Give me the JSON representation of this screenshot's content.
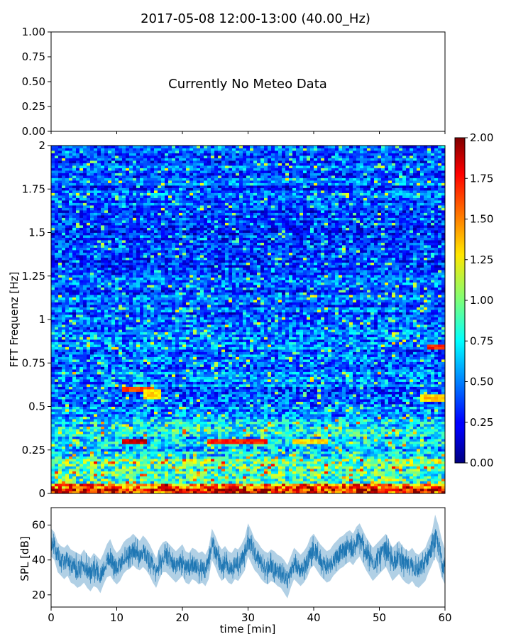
{
  "figure": {
    "title": "2017-05-08 12:00-13:00 (40.00_Hz)"
  },
  "chart_data": [
    {
      "type": "line",
      "name": "meteo",
      "ylim": [
        0,
        1
      ],
      "yticks": [
        {
          "value": 0,
          "label": "0.00"
        },
        {
          "value": 0.25,
          "label": "0.25"
        },
        {
          "value": 0.5,
          "label": "0.50"
        },
        {
          "value": 0.75,
          "label": "0.75"
        },
        {
          "value": 1,
          "label": "1.00"
        }
      ],
      "xlim": [
        0,
        60
      ],
      "xticks": [
        0,
        10,
        20,
        30,
        40,
        50,
        60
      ],
      "annotation": "Currently No Meteo Data",
      "series": []
    },
    {
      "type": "heatmap",
      "name": "spectrogram",
      "ylabel": "FFT Frequenz [Hz]",
      "xlim": [
        0,
        60
      ],
      "ylim": [
        0,
        2
      ],
      "yticks": [
        {
          "value": 0,
          "label": "0"
        },
        {
          "value": 0.25,
          "label": "0.25"
        },
        {
          "value": 0.5,
          "label": "0.5"
        },
        {
          "value": 0.75,
          "label": "0.75"
        },
        {
          "value": 1,
          "label": "1"
        },
        {
          "value": 1.25,
          "label": "1.25"
        },
        {
          "value": 1.5,
          "label": "1.5"
        },
        {
          "value": 1.75,
          "label": "1.75"
        },
        {
          "value": 2,
          "label": "2"
        }
      ],
      "colormap": "jet",
      "colorbar": {
        "range": [
          0,
          2
        ],
        "ticks": [
          "0.00",
          "0.25",
          "0.50",
          "0.75",
          "1.00",
          "1.25",
          "1.50",
          "1.75",
          "2.00"
        ]
      },
      "hotspots": [
        {
          "t0": 10.8,
          "t1": 14.8,
          "f0": 0.28,
          "f1": 0.31,
          "level": 1.85
        },
        {
          "t0": 24.0,
          "t1": 33.0,
          "f0": 0.28,
          "f1": 0.32,
          "level": 1.7
        },
        {
          "t0": 11.0,
          "t1": 15.5,
          "f0": 0.58,
          "f1": 0.61,
          "level": 1.6
        },
        {
          "t0": 14.0,
          "t1": 17.0,
          "f0": 0.55,
          "f1": 0.6,
          "level": 1.3
        },
        {
          "t0": 56.0,
          "t1": 60.0,
          "f0": 0.53,
          "f1": 0.57,
          "level": 1.35
        },
        {
          "t0": 57.5,
          "t1": 60.0,
          "f0": 0.83,
          "f1": 0.85,
          "level": 1.7
        },
        {
          "t0": 36.5,
          "t1": 42.0,
          "f0": 0.29,
          "f1": 0.32,
          "level": 1.3
        }
      ]
    },
    {
      "type": "area",
      "name": "spl",
      "ylabel": "SPL [dB]",
      "xlabel": "time [min]",
      "xlim": [
        0,
        60
      ],
      "ylim": [
        13,
        70
      ],
      "xticks": [
        0,
        10,
        20,
        30,
        40,
        50,
        60
      ],
      "yticks": [
        20,
        40,
        60
      ],
      "color": "#1f77b4",
      "series": [
        {
          "x": [
            0,
            0.5,
            1,
            1.5,
            2,
            2.5,
            3,
            3.5,
            4,
            4.5,
            5,
            5.5,
            6,
            6.5,
            7,
            7.5,
            8,
            8.5,
            9,
            9.5,
            10,
            10.5,
            11,
            11.5,
            12,
            12.5,
            13,
            13.5,
            14,
            14.5,
            15,
            15.5,
            16,
            16.5,
            17,
            17.5,
            18,
            18.5,
            19,
            19.5,
            20,
            20.5,
            21,
            21.5,
            22,
            22.5,
            23,
            23.5,
            24,
            24.5,
            25,
            25.5,
            26,
            26.5,
            27,
            27.5,
            28,
            28.5,
            29,
            29.5,
            30,
            30.5,
            31,
            31.5,
            32,
            32.5,
            33,
            33.5,
            34,
            34.5,
            35,
            35.5,
            36,
            36.5,
            37,
            37.5,
            38,
            38.5,
            39,
            39.5,
            40,
            40.5,
            41,
            41.5,
            42,
            42.5,
            43,
            43.5,
            44,
            44.5,
            45,
            45.5,
            46,
            46.5,
            47,
            47.5,
            48,
            48.5,
            49,
            49.5,
            50,
            50.5,
            51,
            51.5,
            52,
            52.5,
            53,
            53.5,
            54,
            54.5,
            55,
            55.5,
            56,
            56.5,
            57,
            57.5,
            58,
            58.5,
            59,
            59.5,
            60
          ],
          "mid": [
            50,
            48,
            42,
            40,
            38,
            40,
            37,
            36,
            35,
            34,
            37,
            34,
            32,
            35,
            33,
            31,
            35,
            40,
            42,
            38,
            35,
            37,
            41,
            43,
            44,
            46,
            44,
            42,
            45,
            43,
            40,
            36,
            32,
            38,
            41,
            42,
            40,
            38,
            36,
            38,
            40,
            36,
            35,
            38,
            37,
            35,
            36,
            34,
            38,
            50,
            45,
            40,
            37,
            39,
            36,
            35,
            38,
            37,
            40,
            44,
            52,
            48,
            43,
            41,
            38,
            36,
            35,
            37,
            36,
            34,
            33,
            31,
            28,
            33,
            38,
            36,
            34,
            36,
            39,
            44,
            46,
            43,
            40,
            38,
            36,
            37,
            40,
            42,
            44,
            45,
            47,
            48,
            46,
            50,
            52,
            48,
            44,
            41,
            38,
            40,
            42,
            44,
            46,
            42,
            38,
            40,
            42,
            39,
            37,
            36,
            38,
            35,
            34,
            36,
            38,
            43,
            47,
            52,
            48,
            40,
            36
          ],
          "low": [
            42,
            40,
            33,
            31,
            29,
            31,
            27,
            26,
            24,
            25,
            27,
            24,
            22,
            25,
            24,
            21,
            26,
            30,
            31,
            28,
            26,
            28,
            32,
            34,
            35,
            37,
            35,
            34,
            36,
            34,
            31,
            27,
            24,
            29,
            33,
            33,
            31,
            29,
            27,
            29,
            31,
            27,
            26,
            29,
            28,
            26,
            27,
            25,
            29,
            40,
            36,
            31,
            28,
            30,
            27,
            26,
            29,
            28,
            31,
            34,
            42,
            38,
            34,
            32,
            29,
            27,
            26,
            28,
            27,
            25,
            24,
            21,
            18,
            24,
            29,
            27,
            25,
            27,
            30,
            35,
            37,
            34,
            31,
            29,
            27,
            28,
            31,
            33,
            35,
            36,
            38,
            39,
            37,
            40,
            42,
            38,
            34,
            31,
            28,
            30,
            32,
            34,
            36,
            32,
            28,
            30,
            32,
            29,
            27,
            26,
            28,
            25,
            24,
            26,
            28,
            33,
            37,
            42,
            38,
            30,
            26
          ],
          "high": [
            58,
            56,
            50,
            48,
            47,
            49,
            46,
            45,
            44,
            43,
            46,
            43,
            41,
            44,
            42,
            40,
            44,
            49,
            52,
            47,
            44,
            46,
            50,
            52,
            53,
            55,
            53,
            51,
            54,
            52,
            49,
            45,
            41,
            47,
            50,
            51,
            49,
            47,
            45,
            47,
            49,
            45,
            44,
            47,
            46,
            44,
            45,
            43,
            47,
            58,
            54,
            49,
            46,
            48,
            45,
            44,
            47,
            46,
            49,
            53,
            61,
            57,
            52,
            50,
            47,
            45,
            44,
            46,
            45,
            43,
            42,
            40,
            37,
            42,
            47,
            45,
            43,
            45,
            48,
            53,
            55,
            52,
            49,
            47,
            45,
            46,
            49,
            51,
            53,
            54,
            56,
            57,
            55,
            59,
            61,
            57,
            53,
            50,
            47,
            49,
            51,
            53,
            55,
            51,
            47,
            49,
            51,
            48,
            46,
            45,
            47,
            44,
            43,
            45,
            47,
            52,
            56,
            66,
            60,
            52,
            46
          ]
        }
      ]
    }
  ]
}
